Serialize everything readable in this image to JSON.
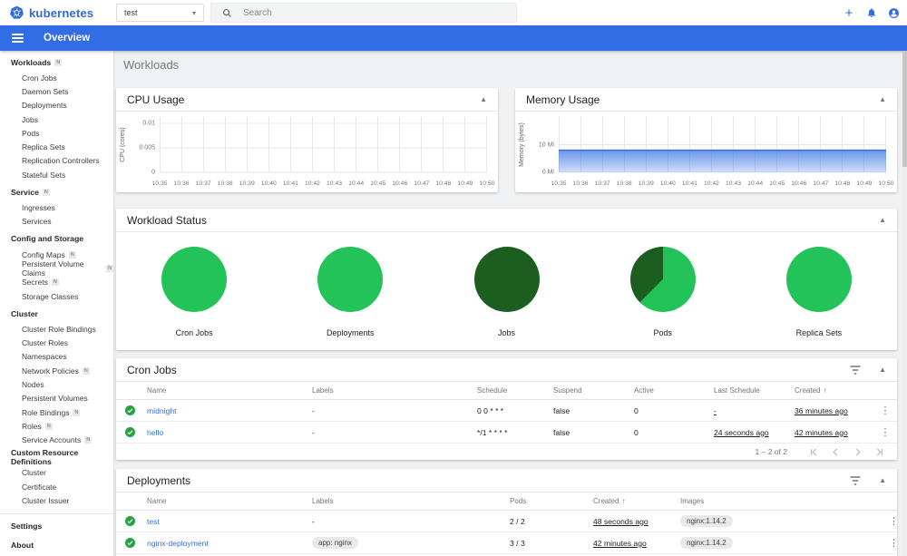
{
  "colors": {
    "brand_blue": "#326de6",
    "app_bar_blue": "#326de6",
    "link_blue": "#326de6",
    "success_green": "#27a143",
    "pie_green": "#23c35a",
    "pie_dark_green": "#1b5e20",
    "memory_line_blue": "#326de6"
  },
  "header": {
    "brand": "kubernetes",
    "namespace_value": "test",
    "search_placeholder": "Search",
    "add_label": "+"
  },
  "appbar": {
    "title": "Overview"
  },
  "page": {
    "title": "Workloads"
  },
  "sidebar": {
    "badge_text": "N",
    "entries": [
      {
        "kind": "group",
        "label": "Workloads",
        "badge": true
      },
      {
        "kind": "item",
        "label": "Cron Jobs"
      },
      {
        "kind": "item",
        "label": "Daemon Sets"
      },
      {
        "kind": "item",
        "label": "Deployments"
      },
      {
        "kind": "item",
        "label": "Jobs"
      },
      {
        "kind": "item",
        "label": "Pods"
      },
      {
        "kind": "item",
        "label": "Replica Sets"
      },
      {
        "kind": "item",
        "label": "Replication Controllers"
      },
      {
        "kind": "item",
        "label": "Stateful Sets"
      },
      {
        "kind": "group",
        "label": "Service",
        "badge": true
      },
      {
        "kind": "item",
        "label": "Ingresses"
      },
      {
        "kind": "item",
        "label": "Services"
      },
      {
        "kind": "group",
        "label": "Config and Storage"
      },
      {
        "kind": "item",
        "label": "Config Maps",
        "badge": true
      },
      {
        "kind": "item",
        "label": "Persistent Volume Claims",
        "badge": true
      },
      {
        "kind": "item",
        "label": "Secrets",
        "badge": true
      },
      {
        "kind": "item",
        "label": "Storage Classes"
      },
      {
        "kind": "group",
        "label": "Cluster"
      },
      {
        "kind": "item",
        "label": "Cluster Role Bindings"
      },
      {
        "kind": "item",
        "label": "Cluster Roles"
      },
      {
        "kind": "item",
        "label": "Namespaces"
      },
      {
        "kind": "item",
        "label": "Network Policies",
        "badge": true
      },
      {
        "kind": "item",
        "label": "Nodes"
      },
      {
        "kind": "item",
        "label": "Persistent Volumes"
      },
      {
        "kind": "item",
        "label": "Role Bindings",
        "badge": true
      },
      {
        "kind": "item",
        "label": "Roles",
        "badge": true
      },
      {
        "kind": "item",
        "label": "Service Accounts",
        "badge": true
      },
      {
        "kind": "group",
        "label": "Custom Resource Definitions"
      },
      {
        "kind": "item",
        "label": "Cluster"
      },
      {
        "kind": "item",
        "label": "Certificate"
      },
      {
        "kind": "item",
        "label": "Cluster Issuer"
      },
      {
        "kind": "divider"
      },
      {
        "kind": "group",
        "label": "Settings"
      },
      {
        "kind": "group",
        "label": "About"
      }
    ]
  },
  "chart_data": [
    {
      "type": "line",
      "title": "CPU Usage",
      "ylabel": "CPU (cores)",
      "x": [
        "10:35",
        "10:36",
        "10:37",
        "10:38",
        "10:39",
        "10:40",
        "10:41",
        "10:42",
        "10:43",
        "10:44",
        "10:45",
        "10:46",
        "10:47",
        "10:48",
        "10:49",
        "10:50"
      ],
      "yticks": [
        {
          "v": 0,
          "label": "0"
        },
        {
          "v": 0.005,
          "label": "0.005"
        },
        {
          "v": 0.01,
          "label": "0.01"
        }
      ],
      "ymax": 0.0113,
      "grid": true,
      "series": []
    },
    {
      "type": "area",
      "title": "Memory Usage",
      "ylabel": "Memory (bytes)",
      "x": [
        "10:35",
        "10:36",
        "10:37",
        "10:38",
        "10:39",
        "10:40",
        "10:41",
        "10:42",
        "10:43",
        "10:44",
        "10:45",
        "10:46",
        "10:47",
        "10:48",
        "10:49",
        "10:50"
      ],
      "yticks": [
        {
          "v": 0,
          "label": "0 Mi"
        },
        {
          "v": 10,
          "label": "10 Mi"
        }
      ],
      "ymax": 20,
      "unit": "Mi",
      "grid": true,
      "series": [
        {
          "name": "memory usage",
          "values": [
            8,
            8,
            8,
            8,
            8,
            8,
            8,
            8,
            8,
            8,
            8,
            8,
            8,
            8,
            8,
            8
          ]
        }
      ]
    },
    {
      "type": "pie",
      "title": "Workload Status",
      "pies": [
        {
          "label": "Cron Jobs",
          "slices": [
            {
              "color": "pie_green",
              "pct": 100
            }
          ]
        },
        {
          "label": "Deployments",
          "slices": [
            {
              "color": "pie_green",
              "pct": 100
            }
          ]
        },
        {
          "label": "Jobs",
          "slices": [
            {
              "color": "pie_dark_green",
              "pct": 100
            }
          ]
        },
        {
          "label": "Pods",
          "slices": [
            {
              "color": "pie_green",
              "pct": 62.5
            },
            {
              "color": "pie_dark_green",
              "pct": 37.5
            }
          ]
        },
        {
          "label": "Replica Sets",
          "slices": [
            {
              "color": "pie_green",
              "pct": 100
            }
          ]
        }
      ]
    }
  ],
  "cron_jobs_table": {
    "title": "Cron Jobs",
    "columns": [
      "Name",
      "Labels",
      "Schedule",
      "Suspend",
      "Active",
      "Last Schedule",
      "Created"
    ],
    "sort_column": "Created",
    "rows": [
      {
        "status": "success",
        "cells": [
          {
            "t": "midnight",
            "s": "link"
          },
          {
            "t": "-"
          },
          {
            "t": "0 0 * * *"
          },
          {
            "t": "false"
          },
          {
            "t": "0"
          },
          {
            "t": "-",
            "s": "underline"
          },
          {
            "t": "36 minutes ago",
            "s": "underline"
          }
        ]
      },
      {
        "status": "success",
        "cells": [
          {
            "t": "hello",
            "s": "link"
          },
          {
            "t": "-"
          },
          {
            "t": "*/1 * * * *"
          },
          {
            "t": "false"
          },
          {
            "t": "0"
          },
          {
            "t": "24 seconds ago",
            "s": "underline"
          },
          {
            "t": "42 minutes ago",
            "s": "underline"
          }
        ]
      }
    ],
    "pagination": {
      "range": "1 – 2 of 2"
    }
  },
  "deployments_table": {
    "title": "Deployments",
    "columns": [
      "Name",
      "Labels",
      "Pods",
      "Created",
      "Images"
    ],
    "sort_column": "Created",
    "rows": [
      {
        "status": "success",
        "cells": [
          {
            "t": "test",
            "s": "link"
          },
          {
            "t": "-"
          },
          {
            "t": "2 / 2"
          },
          {
            "t": "48 seconds ago",
            "s": "underline"
          },
          {
            "t": "nginx:1.14.2",
            "s": "chip"
          }
        ]
      },
      {
        "status": "success",
        "cells": [
          {
            "t": "nginx-deployment",
            "s": "link"
          },
          {
            "t": "app: nginx",
            "s": "chip"
          },
          {
            "t": "3 / 3"
          },
          {
            "t": "42 minutes ago",
            "s": "underline"
          },
          {
            "t": "nginx:1.14.2",
            "s": "chip"
          }
        ]
      }
    ]
  }
}
